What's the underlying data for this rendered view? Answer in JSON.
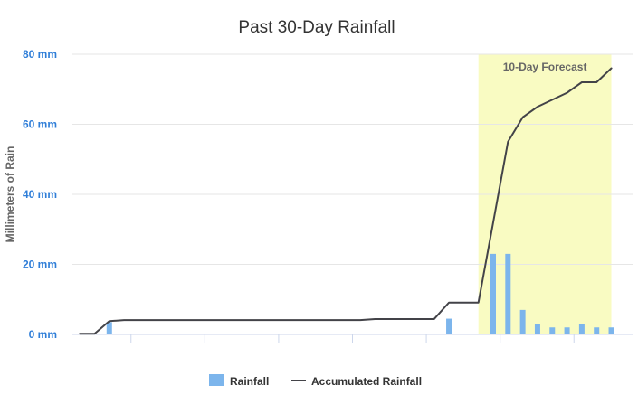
{
  "chart_data": {
    "type": "bar",
    "title": "Past 30-Day Rainfall",
    "xlabel": "",
    "ylabel": "Millimeters of Rain",
    "ylim": [
      0,
      80
    ],
    "yticks": [
      "0 mm",
      "20 mm",
      "40 mm",
      "60 mm",
      "80 mm"
    ],
    "grid": true,
    "legend_position": "bottom",
    "annotation": {
      "text": "10-Day Forecast",
      "start_day": 28,
      "end_day": 37,
      "color": "#f9fbc2"
    },
    "series": [
      {
        "name": "Rainfall",
        "kind": "bar",
        "color": "#7cb5ec",
        "x": [
          3,
          26,
          29,
          30,
          31,
          32,
          33,
          34,
          35,
          36,
          37
        ],
        "values": [
          3.5,
          4.5,
          23,
          23,
          7,
          3,
          2,
          2,
          3,
          2,
          2
        ]
      },
      {
        "name": "Accumulated Rainfall",
        "kind": "line",
        "color": "#434348",
        "x": [
          1,
          2,
          3,
          4,
          5,
          20,
          21,
          22,
          25,
          26,
          27,
          28,
          29,
          30,
          31,
          32,
          33,
          34,
          35,
          36,
          37
        ],
        "values": [
          0.2,
          0.2,
          3.8,
          4.1,
          4.1,
          4.1,
          4.4,
          4.4,
          4.4,
          9.1,
          9.1,
          9.1,
          32,
          55,
          62,
          65,
          67,
          69,
          72,
          72,
          76
        ]
      }
    ]
  },
  "colors": {
    "ytick": "#2f7ed8",
    "grid": "#e6e6e6",
    "axis": "#ccd6eb"
  }
}
